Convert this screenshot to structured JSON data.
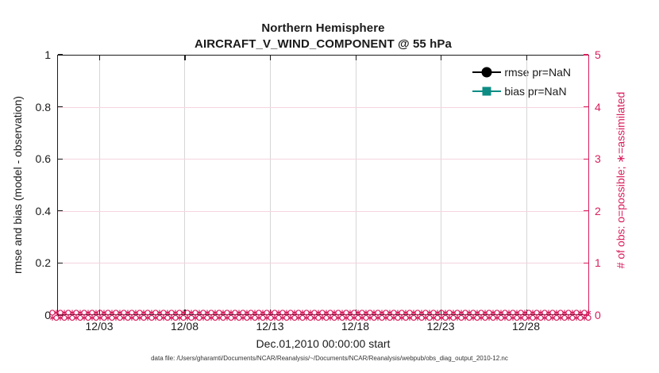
{
  "figure": {
    "title": "Northern Hemisphere",
    "subtitle": "AIRCRAFT_V_WIND_COMPONENT @ 55 hPa",
    "footnote": "data file: /Users/gharamti/Documents/NCAR/Reanalysis/~/Documents/NCAR/Reanalysis/webpub/obs_diag_output_2010-12.nc"
  },
  "chart_data": {
    "type": "line",
    "title": "Northern Hemisphere",
    "subtitle": "AIRCRAFT_V_WIND_COMPONENT @ 55 hPa",
    "x_axis": {
      "label": "Dec.01,2010 00:00:00 start",
      "ticklabels": [
        "12/03",
        "12/08",
        "12/13",
        "12/18",
        "12/23",
        "12/28"
      ]
    },
    "left_axis": {
      "label": "rmse and bias (model - observation)",
      "ticklabels": [
        "0",
        "0.2",
        "0.4",
        "0.6",
        "0.8",
        "1"
      ],
      "range": [
        0,
        1
      ],
      "color": "#1a1a1a"
    },
    "right_axis": {
      "label": "# of obs: o=possible; ∗=assimilated",
      "ticklabels": [
        "0",
        "1",
        "2",
        "3",
        "4",
        "5"
      ],
      "range": [
        0,
        5
      ],
      "color": "#d81e5f"
    },
    "series": [
      {
        "name": "rmse pr=NaN",
        "color": "#000000",
        "marker": "circle",
        "values": "NaN"
      },
      {
        "name": "bias pr=NaN",
        "color": "#0d8c84",
        "marker": "square",
        "values": "NaN"
      }
    ],
    "obs_counts": {
      "possible_marker": "o",
      "assimilated_marker": "*",
      "value": 0,
      "color": "#d81e5f",
      "note": "dense overlapping o and * markers along y=0 across the full month"
    },
    "grid": {
      "vertical_color": "#d6d6d6",
      "horizontal_color": "#f6d3e0",
      "grid_on": true
    },
    "legend_position": "top-right inside plot, no box"
  }
}
